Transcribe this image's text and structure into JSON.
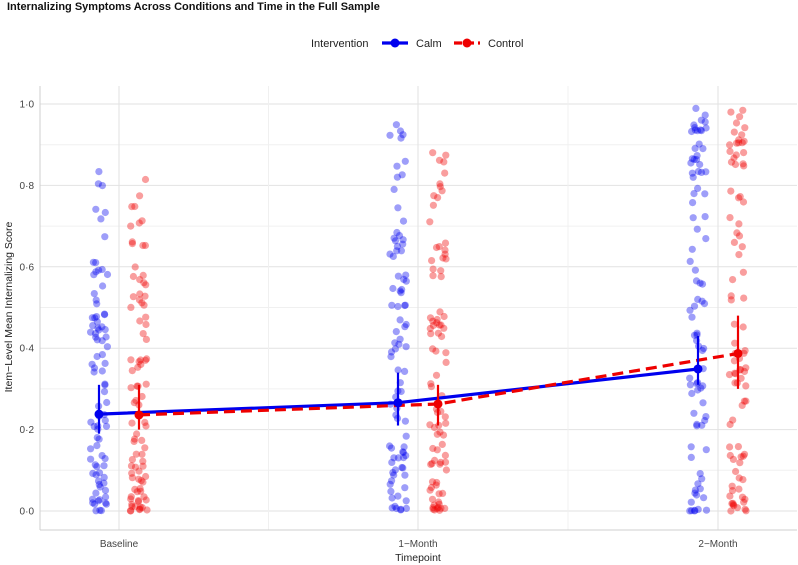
{
  "chart_data": {
    "type": "scatter",
    "title": "Internalizing Symptoms Across Conditions and Time in the Full Sample",
    "xlabel": "Timepoint",
    "ylabel": "Item−Level Mean Internalizing Score",
    "categories": [
      "Baseline",
      "1−Month",
      "2−Month"
    ],
    "ylim": [
      0,
      1
    ],
    "yticks": [
      "0·0",
      "0·2",
      "0·4",
      "0·6",
      "0·8",
      "1·0"
    ],
    "grid": true,
    "legend": {
      "title": "Intervention",
      "position": "top",
      "entries": [
        "Calm",
        "Control"
      ]
    },
    "series": [
      {
        "name": "Calm",
        "color": "#0000ee",
        "line_style": "solid",
        "means": [
          0.238,
          0.266,
          0.349
        ],
        "ci_low": [
          0.19,
          0.21,
          0.31
        ],
        "ci_high": [
          0.31,
          0.34,
          0.43
        ],
        "point_max": [
          0.84,
          0.96,
          0.99
        ],
        "n_points": 260
      },
      {
        "name": "Control",
        "color": "#ee0000",
        "line_style": "dashed",
        "means": [
          0.236,
          0.263,
          0.387
        ],
        "ci_low": [
          0.2,
          0.21,
          0.3
        ],
        "ci_high": [
          0.31,
          0.31,
          0.48
        ],
        "point_max": [
          0.86,
          0.92,
          0.99
        ],
        "n_points": 260
      }
    ]
  }
}
